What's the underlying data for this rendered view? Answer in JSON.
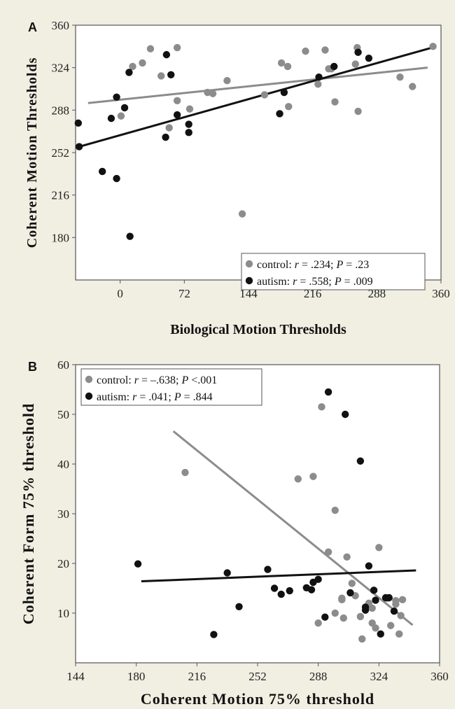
{
  "chart_data": [
    {
      "panel_label": "A",
      "type": "scatter",
      "xlabel": "Biological Motion Thresholds",
      "ylabel": "Coherent Motion Thresholds",
      "xlim": [
        -50,
        360
      ],
      "ylim": [
        144,
        360
      ],
      "xticks": [
        "0",
        "72",
        "144",
        "216",
        "288",
        "360"
      ],
      "yticks": [
        "180",
        "216",
        "252",
        "288",
        "324",
        "360"
      ],
      "legend_position": "bottom-right",
      "series": [
        {
          "name": "control",
          "stat_r": "r = .234; ",
          "stat_p": "P = .23",
          "color": "#8c8c8c",
          "points": [
            [
              1,
              283
            ],
            [
              14,
              325
            ],
            [
              25,
              328
            ],
            [
              34,
              340
            ],
            [
              46,
              317
            ],
            [
              55,
              273
            ],
            [
              64,
              341
            ],
            [
              64,
              296
            ],
            [
              78,
              289
            ],
            [
              98,
              303
            ],
            [
              104,
              302
            ],
            [
              120,
              313
            ],
            [
              137,
              200
            ],
            [
              162,
              301
            ],
            [
              181,
              328
            ],
            [
              188,
              325
            ],
            [
              189,
              291
            ],
            [
              208,
              338
            ],
            [
              222,
              310
            ],
            [
              230,
              339
            ],
            [
              234,
              323
            ],
            [
              237,
              323
            ],
            [
              241,
              295
            ],
            [
              264,
              327
            ],
            [
              266,
              341
            ],
            [
              267,
              287
            ],
            [
              314,
              316
            ],
            [
              328,
              308
            ],
            [
              351,
              342
            ]
          ],
          "trend": [
            [
              -36,
              294
            ],
            [
              345,
              324
            ]
          ]
        },
        {
          "name": "autism",
          "stat_r": "r = .558; ",
          "stat_p": "P = .009",
          "color": "#111111",
          "points": [
            [
              -47,
              277
            ],
            [
              -46,
              257
            ],
            [
              -20,
              236
            ],
            [
              -10,
              281
            ],
            [
              -4,
              230
            ],
            [
              -4,
              299
            ],
            [
              5,
              290
            ],
            [
              10,
              320
            ],
            [
              11,
              181
            ],
            [
              51,
              265
            ],
            [
              52,
              335
            ],
            [
              57,
              318
            ],
            [
              64,
              284
            ],
            [
              77,
              269
            ],
            [
              77,
              276
            ],
            [
              179,
              285
            ],
            [
              184,
              303
            ],
            [
              223,
              316
            ],
            [
              240,
              325
            ],
            [
              267,
              337
            ],
            [
              279,
              332
            ]
          ],
          "trend": [
            [
              -46,
              257
            ],
            [
              350,
              341
            ]
          ]
        }
      ]
    },
    {
      "panel_label": "B",
      "type": "scatter",
      "xlabel": "Coherent Motion 75% threshold",
      "ylabel": "Coherent Form 75% threshold",
      "xlim": [
        144,
        360
      ],
      "ylim": [
        0,
        60
      ],
      "xticks": [
        "144",
        "180",
        "216",
        "252",
        "288",
        "324",
        "360"
      ],
      "yticks": [
        "10",
        "20",
        "30",
        "40",
        "50",
        "60"
      ],
      "legend_position": "top-left",
      "series": [
        {
          "name": "control",
          "stat_r": "r = –.638; ",
          "stat_p": "P <.001",
          "color": "#8c8c8c",
          "points": [
            [
              209,
              38.3
            ],
            [
              276,
              37
            ],
            [
              285,
              37.5
            ],
            [
              290,
              51.5
            ],
            [
              294,
              22.3
            ],
            [
              298,
              30.7
            ],
            [
              288,
              8
            ],
            [
              302,
              13
            ],
            [
              298,
              10
            ],
            [
              305,
              21.3
            ],
            [
              308,
              16
            ],
            [
              310,
              13.5
            ],
            [
              313,
              9.3
            ],
            [
              314,
              4.8
            ],
            [
              318,
              12
            ],
            [
              320,
              8
            ],
            [
              320,
              11
            ],
            [
              322,
              7
            ],
            [
              324,
              23.2
            ],
            [
              329,
              13
            ],
            [
              331,
              7.5
            ],
            [
              334,
              12.5
            ],
            [
              334,
              11.8
            ],
            [
              336,
              5.8
            ],
            [
              338,
              12.7
            ],
            [
              337,
              9.5
            ],
            [
              302,
              12.7
            ],
            [
              303,
              9
            ]
          ],
          "trend": [
            [
              202,
              46.6
            ],
            [
              344,
              7.6
            ]
          ]
        },
        {
          "name": "autism",
          "stat_r": "r = .041; ",
          "stat_p": "P = .844",
          "color": "#111111",
          "points": [
            [
              181,
              19.9
            ],
            [
              226,
              5.7
            ],
            [
              234,
              18.1
            ],
            [
              241,
              11.3
            ],
            [
              258,
              18.8
            ],
            [
              262,
              15
            ],
            [
              266,
              13.8
            ],
            [
              271,
              14.5
            ],
            [
              281,
              15.1
            ],
            [
              284,
              14.7
            ],
            [
              285,
              16.2
            ],
            [
              288,
              16.8
            ],
            [
              292,
              9.2
            ],
            [
              294,
              54.5
            ],
            [
              304,
              50
            ],
            [
              307,
              14.1
            ],
            [
              313,
              40.6
            ],
            [
              316,
              10.6
            ],
            [
              316,
              11.2
            ],
            [
              318,
              19.5
            ],
            [
              321,
              14.6
            ],
            [
              322,
              12.6
            ],
            [
              325,
              5.8
            ],
            [
              328,
              13.1
            ],
            [
              330,
              13.1
            ],
            [
              333,
              10.4
            ]
          ],
          "trend": [
            [
              183,
              16.4
            ],
            [
              346,
              18.6
            ]
          ]
        }
      ]
    }
  ]
}
